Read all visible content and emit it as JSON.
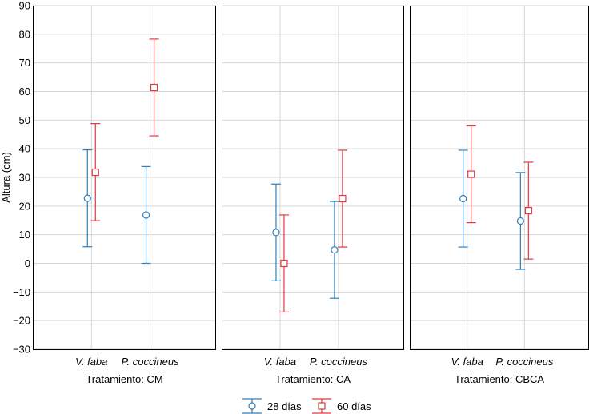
{
  "chart_data": {
    "type": "scatter",
    "subtype": "mean-with-error-bars",
    "ylabel": "Altura (cm)",
    "ylim": [
      -30,
      90
    ],
    "yticks": [
      -30,
      -20,
      -10,
      0,
      10,
      20,
      30,
      40,
      50,
      60,
      70,
      80,
      90
    ],
    "ytick_labels": [
      "−30",
      "−20",
      "−10",
      "0",
      "10",
      "20",
      "30",
      "40",
      "50",
      "60",
      "70",
      "80",
      "90"
    ],
    "categories": [
      "V. faba",
      "P. coccineus"
    ],
    "grid": true,
    "legend_position": "bottom-center",
    "series": [
      {
        "name": "28 días",
        "marker": "circle",
        "color": "#2f7ebc"
      },
      {
        "name": "60 días",
        "marker": "square",
        "color": "#e03a3e"
      }
    ],
    "panels": [
      {
        "label": "Tratamiento: CM",
        "data": [
          {
            "category": "V. faba",
            "series": "28 días",
            "mean": 22.7,
            "low": 5.8,
            "high": 39.6
          },
          {
            "category": "V. faba",
            "series": "60 días",
            "mean": 31.8,
            "low": 14.9,
            "high": 48.8
          },
          {
            "category": "P. coccineus",
            "series": "28 días",
            "mean": 16.9,
            "low": 0,
            "high": 33.8
          },
          {
            "category": "P. coccineus",
            "series": "60 días",
            "mean": 61.4,
            "low": 44.5,
            "high": 78.3
          }
        ]
      },
      {
        "label": "Tratamiento: CA",
        "data": [
          {
            "category": "V. faba",
            "series": "28 días",
            "mean": 10.8,
            "low": -6.1,
            "high": 27.7
          },
          {
            "category": "V. faba",
            "series": "60 días",
            "mean": 0,
            "low": -17,
            "high": 16.9
          },
          {
            "category": "P. coccineus",
            "series": "28 días",
            "mean": 4.7,
            "low": -12.2,
            "high": 21.6
          },
          {
            "category": "P. coccineus",
            "series": "60 días",
            "mean": 22.6,
            "low": 5.7,
            "high": 39.5
          }
        ]
      },
      {
        "label": "Tratamiento: CBCA",
        "data": [
          {
            "category": "V. faba",
            "series": "28 días",
            "mean": 22.6,
            "low": 5.7,
            "high": 39.5
          },
          {
            "category": "V. faba",
            "series": "60 días",
            "mean": 31.1,
            "low": 14.2,
            "high": 48
          },
          {
            "category": "P. coccineus",
            "series": "28 días",
            "mean": 14.8,
            "low": -2.1,
            "high": 31.7
          },
          {
            "category": "P. coccineus",
            "series": "60 días",
            "mean": 18.4,
            "low": 1.5,
            "high": 35.3
          }
        ]
      }
    ]
  }
}
